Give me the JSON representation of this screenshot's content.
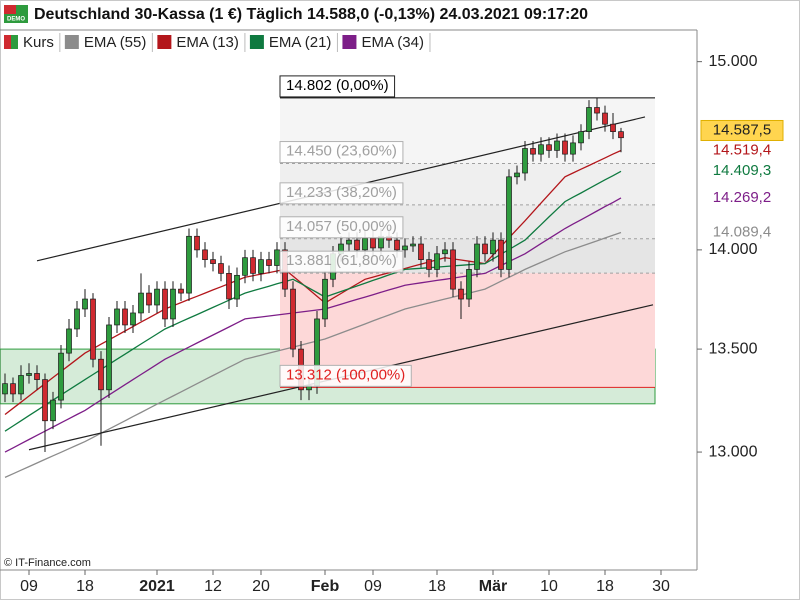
{
  "chart_data": {
    "type": "candlestick",
    "title": "Deutschland 30-Kassa (1 €) Täglich 14.588,0 (-0,13%) 24.03.2021 09:17:20",
    "badge": "DEMO",
    "credit": "© IT-Finance.com",
    "log": true,
    "ylim": [
      12450,
      15175
    ],
    "yticks": [
      {
        "value": 15000,
        "label": "15.000"
      },
      {
        "value": 14000,
        "label": "14.000"
      },
      {
        "value": 13500,
        "label": "13.500"
      },
      {
        "value": 13000,
        "label": "13.000"
      }
    ],
    "categories": [
      null,
      null,
      null,
      "09",
      null,
      null,
      null,
      null,
      null,
      null,
      "18",
      null,
      null,
      null,
      null,
      null,
      null,
      null,
      null,
      "2021",
      null,
      null,
      null,
      null,
      null,
      null,
      "12",
      null,
      null,
      null,
      null,
      null,
      "20",
      null,
      null,
      null,
      null,
      null,
      null,
      null,
      "Feb",
      null,
      null,
      null,
      null,
      null,
      "09",
      null,
      null,
      null,
      null,
      null,
      null,
      null,
      "18",
      null,
      null,
      null,
      null,
      null,
      null,
      "Mär",
      null,
      null,
      null,
      null,
      null,
      null,
      "10",
      null,
      null,
      null,
      null,
      null,
      null,
      "18",
      null,
      null,
      null,
      null,
      null,
      null,
      "30",
      null,
      null,
      null,
      null
    ],
    "series": [
      {
        "name": "Kurs",
        "type": "candlestick",
        "up_color": "#2e9b3e",
        "down_color": "#cf2a30",
        "last_label": "14.587,5",
        "values": [
          [
            13280,
            13380,
            13240,
            13330
          ],
          [
            13330,
            13360,
            13240,
            13280
          ],
          [
            13280,
            13420,
            13250,
            13370
          ],
          [
            13370,
            13430,
            13330,
            13380
          ],
          [
            13380,
            13420,
            13300,
            13350
          ],
          [
            13350,
            13380,
            13000,
            13150
          ],
          [
            13150,
            13290,
            13110,
            13250
          ],
          [
            13250,
            13520,
            13210,
            13480
          ],
          [
            13480,
            13650,
            13440,
            13600
          ],
          [
            13600,
            13740,
            13560,
            13700
          ],
          [
            13700,
            13800,
            13660,
            13750
          ],
          [
            13750,
            13780,
            13410,
            13450
          ],
          [
            13450,
            13490,
            13030,
            13300
          ],
          [
            13300,
            13660,
            13260,
            13620
          ],
          [
            13620,
            13740,
            13580,
            13700
          ],
          [
            13700,
            13740,
            13580,
            13620
          ],
          [
            13620,
            13720,
            13580,
            13680
          ],
          [
            13680,
            13880,
            13640,
            13780
          ],
          [
            13780,
            13820,
            13680,
            13720
          ],
          [
            13720,
            13840,
            13680,
            13800
          ],
          [
            13800,
            13840,
            13610,
            13650
          ],
          [
            13650,
            13840,
            13610,
            13800
          ],
          [
            13800,
            13830,
            13740,
            13780
          ],
          [
            13780,
            14110,
            13740,
            14070
          ],
          [
            14070,
            14110,
            13960,
            14000
          ],
          [
            14000,
            14040,
            13910,
            13950
          ],
          [
            13950,
            13990,
            13890,
            13930
          ],
          [
            13930,
            13970,
            13840,
            13880
          ],
          [
            13880,
            13920,
            13700,
            13750
          ],
          [
            13750,
            13910,
            13710,
            13870
          ],
          [
            13870,
            14000,
            13830,
            13960
          ],
          [
            13960,
            14000,
            13840,
            13880
          ],
          [
            13880,
            13990,
            13840,
            13950
          ],
          [
            13950,
            13990,
            13880,
            13920
          ],
          [
            13920,
            14040,
            13880,
            14000
          ],
          [
            14000,
            14040,
            13760,
            13800
          ],
          [
            13800,
            13840,
            13460,
            13500
          ],
          [
            13500,
            13540,
            13250,
            13300
          ],
          [
            13300,
            13360,
            13250,
            13320
          ],
          [
            13320,
            13690,
            13280,
            13650
          ],
          [
            13650,
            13890,
            13610,
            13850
          ],
          [
            13850,
            14020,
            13810,
            13980
          ],
          [
            13980,
            14070,
            13940,
            14030
          ],
          [
            14030,
            14090,
            13990,
            14050
          ],
          [
            14050,
            14090,
            13960,
            14000
          ],
          [
            14000,
            14100,
            13960,
            14060
          ],
          [
            14060,
            14100,
            13970,
            14010
          ],
          [
            14010,
            14110,
            13970,
            14070
          ],
          [
            14070,
            14110,
            14010,
            14050
          ],
          [
            14050,
            14090,
            13960,
            14000
          ],
          [
            14000,
            14060,
            13960,
            14020
          ],
          [
            14020,
            14070,
            13990,
            14030
          ],
          [
            14030,
            14070,
            13910,
            13950
          ],
          [
            13950,
            13990,
            13860,
            13900
          ],
          [
            13900,
            14020,
            13860,
            13980
          ],
          [
            13980,
            14040,
            13940,
            14000
          ],
          [
            14000,
            14040,
            13760,
            13800
          ],
          [
            13800,
            13840,
            13650,
            13750
          ],
          [
            13750,
            13940,
            13710,
            13900
          ],
          [
            13900,
            14070,
            13860,
            14030
          ],
          [
            14030,
            14070,
            13940,
            13980
          ],
          [
            13980,
            14090,
            13940,
            14050
          ],
          [
            14050,
            14090,
            13860,
            13900
          ],
          [
            13900,
            14420,
            13860,
            14380
          ],
          [
            14380,
            14440,
            14340,
            14400
          ],
          [
            14400,
            14570,
            14360,
            14530
          ],
          [
            14530,
            14570,
            14460,
            14500
          ],
          [
            14500,
            14590,
            14460,
            14550
          ],
          [
            14550,
            14590,
            14480,
            14520
          ],
          [
            14520,
            14610,
            14480,
            14570
          ],
          [
            14570,
            14610,
            14460,
            14500
          ],
          [
            14500,
            14600,
            14460,
            14560
          ],
          [
            14560,
            14660,
            14520,
            14620
          ],
          [
            14620,
            14790,
            14580,
            14750
          ],
          [
            14750,
            14802,
            14680,
            14720
          ],
          [
            14720,
            14760,
            14620,
            14660
          ],
          [
            14660,
            14720,
            14580,
            14620
          ],
          [
            14620,
            14640,
            14510,
            14587.5
          ],
          null,
          null,
          null,
          null,
          null,
          null,
          null,
          null,
          null
        ]
      },
      {
        "name": "EMA (55)",
        "color": "#8c8c8c",
        "last_label": "14.089,4",
        "values": [
          12880,
          12897,
          12914,
          12931,
          12948,
          12965,
          12982,
          12999,
          13016,
          13033,
          13050,
          13070,
          13090,
          13110,
          13130,
          13150,
          13170,
          13190,
          13210,
          13230,
          13250,
          13270,
          13290,
          13310,
          13330,
          13350,
          13370,
          13390,
          13410,
          13430,
          13450,
          13460,
          13470,
          13480,
          13490,
          13500,
          13510,
          13520,
          13530,
          13540,
          13550,
          13565,
          13580,
          13595,
          13610,
          13625,
          13640,
          13655,
          13670,
          13685,
          13700,
          13710,
          13720,
          13730,
          13740,
          13750,
          13760,
          13770,
          13780,
          13790,
          13800,
          13820,
          13840,
          13860,
          13880,
          13900,
          13918,
          13936,
          13954,
          13972,
          13990,
          14004,
          14018,
          14032,
          14046,
          14061,
          14075,
          14089.4,
          null,
          null,
          null,
          null,
          null,
          null,
          null,
          null,
          null
        ]
      },
      {
        "name": "EMA (13)",
        "color": "#b3161b",
        "last_label": "14.519,4",
        "values": [
          13180,
          13210,
          13240,
          13270,
          13300,
          13330,
          13360,
          13390,
          13420,
          13450,
          13480,
          13502,
          13524,
          13546,
          13568,
          13590,
          13612,
          13634,
          13656,
          13678,
          13700,
          13716,
          13732,
          13748,
          13764,
          13780,
          13796,
          13812,
          13828,
          13844,
          13860,
          13868,
          13876,
          13884,
          13892,
          13900,
          13866,
          13832,
          13798,
          13764,
          13730,
          13754,
          13778,
          13802,
          13826,
          13850,
          13861,
          13872,
          13883,
          13894,
          13905,
          13916,
          13927,
          13938,
          13949,
          13960,
          13954,
          13948,
          13942,
          13936,
          13930,
          13974,
          14018,
          14062,
          14106,
          14150,
          14196,
          14242,
          14288,
          14334,
          14380,
          14400,
          14420,
          14440,
          14460,
          14480,
          14500,
          14519.4,
          null,
          null,
          null,
          null,
          null,
          null,
          null,
          null,
          null
        ]
      },
      {
        "name": "EMA (21)",
        "color": "#0f7a40",
        "last_label": "14.409,3",
        "values": [
          13100,
          13125,
          13150,
          13175,
          13200,
          13225,
          13250,
          13275,
          13300,
          13325,
          13350,
          13375,
          13400,
          13425,
          13450,
          13475,
          13500,
          13525,
          13550,
          13575,
          13600,
          13618,
          13636,
          13654,
          13672,
          13690,
          13708,
          13726,
          13744,
          13762,
          13780,
          13792,
          13803,
          13815,
          13827,
          13838,
          13850,
          13828,
          13805,
          13783,
          13760,
          13774,
          13788,
          13802,
          13816,
          13830,
          13844,
          13858,
          13872,
          13886,
          13900,
          13903,
          13906,
          13909,
          13912,
          13915,
          13918,
          13921,
          13924,
          13927,
          13930,
          13954,
          13978,
          14002,
          14026,
          14050,
          14090,
          14130,
          14170,
          14210,
          14250,
          14273,
          14295,
          14318,
          14341,
          14364,
          14386,
          14409.3,
          null,
          null,
          null,
          null,
          null,
          null,
          null,
          null,
          null
        ]
      },
      {
        "name": "EMA (34)",
        "color": "#7d1e88",
        "last_label": "14.269,2",
        "values": [
          13000,
          13020,
          13040,
          13060,
          13080,
          13100,
          13120,
          13140,
          13160,
          13180,
          13200,
          13225,
          13250,
          13275,
          13300,
          13325,
          13350,
          13375,
          13400,
          13425,
          13450,
          13470,
          13490,
          13510,
          13530,
          13550,
          13570,
          13590,
          13610,
          13630,
          13650,
          13655,
          13660,
          13665,
          13670,
          13675,
          13680,
          13685,
          13690,
          13695,
          13700,
          13712,
          13724,
          13736,
          13748,
          13760,
          13772,
          13784,
          13796,
          13808,
          13820,
          13826,
          13832,
          13838,
          13844,
          13850,
          13856,
          13862,
          13868,
          13874,
          13880,
          13900,
          13920,
          13940,
          13960,
          13980,
          14006,
          14032,
          14058,
          14084,
          14110,
          14133,
          14155,
          14178,
          14201,
          14224,
          14246,
          14269.2,
          null,
          null,
          null,
          null,
          null,
          null,
          null,
          null,
          null
        ]
      }
    ],
    "fibonacci": {
      "levels": [
        {
          "value": 14802,
          "label": "14.802 (0,00%)",
          "color": "#000000"
        },
        {
          "value": 14450,
          "label": "14.450 (23,60%)",
          "color": "#a0a0a0"
        },
        {
          "value": 14233,
          "label": "14.233 (38,20%)",
          "color": "#a0a0a0"
        },
        {
          "value": 14057,
          "label": "14.057 (50,00%)",
          "color": "#a0a0a0"
        },
        {
          "value": 13881,
          "label": "13.881 (61,80%)",
          "color": "#a0a0a0"
        },
        {
          "value": 13312,
          "label": "13.312 (100,00%)",
          "color": "#e02020"
        }
      ],
      "fills": [
        "#f5f5f5",
        "#efefef",
        "#eaeaea",
        "#e5e5e5",
        "#fdd8d8"
      ]
    },
    "zone": {
      "values": [
        13232,
        13500
      ],
      "color": "#2e9b3e"
    },
    "trendlines": [
      {
        "x": [
          4,
          80
        ],
        "values": [
          13944,
          14699
        ]
      },
      {
        "x": [
          3,
          81
        ],
        "values": [
          13011,
          13721
        ]
      }
    ]
  }
}
